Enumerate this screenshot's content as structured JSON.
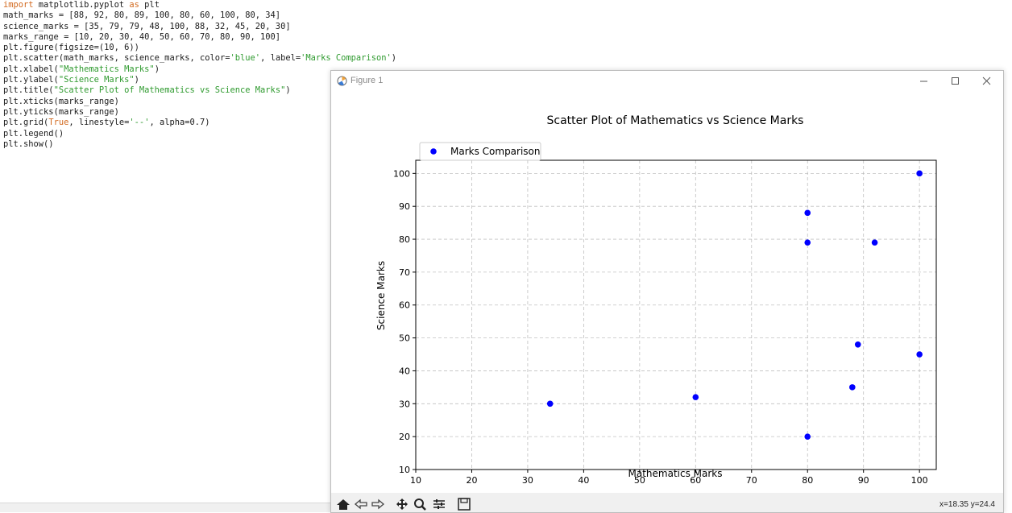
{
  "editor": {
    "lines": [
      [
        {
          "t": "import",
          "c": "kw"
        },
        {
          "t": " matplotlib.pyplot "
        },
        {
          "t": "as",
          "c": "kw"
        },
        {
          "t": " plt"
        }
      ],
      [
        {
          "t": "math_marks = [88, 92, 80, 89, 100, 80, 60, 100, 80, 34]"
        }
      ],
      [
        {
          "t": "science_marks = [35, 79, 79, 48, 100, 88, 32, 45, 20, 30]"
        }
      ],
      [
        {
          "t": "marks_range = [10, 20, 30, 40, 50, 60, 70, 80, 90, 100]"
        }
      ],
      [
        {
          "t": "plt.figure(figsize=(10, 6))"
        }
      ],
      [
        {
          "t": "plt.scatter(math_marks, science_marks, color="
        },
        {
          "t": "'blue'",
          "c": "str"
        },
        {
          "t": ", label="
        },
        {
          "t": "'Marks Comparison'",
          "c": "str"
        },
        {
          "t": ")"
        }
      ],
      [
        {
          "t": "plt.xlabel("
        },
        {
          "t": "\"Mathematics Marks\"",
          "c": "str"
        },
        {
          "t": ")"
        }
      ],
      [
        {
          "t": "plt.ylabel("
        },
        {
          "t": "\"Science Marks\"",
          "c": "str"
        },
        {
          "t": ")"
        }
      ],
      [
        {
          "t": "plt.title("
        },
        {
          "t": "\"Scatter Plot of Mathematics vs Science Marks\"",
          "c": "str"
        },
        {
          "t": ")"
        }
      ],
      [
        {
          "t": "plt.xticks(marks_range)"
        }
      ],
      [
        {
          "t": "plt.yticks(marks_range)"
        }
      ],
      [
        {
          "t": "plt.grid("
        },
        {
          "t": "True",
          "c": "kw"
        },
        {
          "t": ", linestyle="
        },
        {
          "t": "'--'",
          "c": "str"
        },
        {
          "t": ", alpha=0.7)"
        }
      ],
      [
        {
          "t": "plt.legend()"
        }
      ],
      [
        {
          "t": "plt.show()"
        }
      ]
    ]
  },
  "window": {
    "title": "Figure 1",
    "minimize_icon": "minimize-icon",
    "maximize_icon": "maximize-icon",
    "close_icon": "close-icon"
  },
  "toolbar": {
    "buttons": [
      "home-icon",
      "back-icon",
      "forward-icon",
      "pan-icon",
      "zoom-icon",
      "configure-subplots-icon",
      "save-icon"
    ],
    "coords": "x=18.35 y=24.4"
  },
  "chart_data": {
    "type": "scatter",
    "title": "Scatter Plot of Mathematics vs Science Marks",
    "xlabel": "Mathematics Marks",
    "ylabel": "Science Marks",
    "xlim": [
      10,
      103
    ],
    "ylim": [
      10,
      104
    ],
    "xticks": [
      10,
      20,
      30,
      40,
      50,
      60,
      70,
      80,
      90,
      100
    ],
    "yticks": [
      10,
      20,
      30,
      40,
      50,
      60,
      70,
      80,
      90,
      100
    ],
    "grid": true,
    "legend_position": "upper-left",
    "series": [
      {
        "name": "Marks Comparison",
        "color": "#0000ff",
        "x": [
          88,
          92,
          80,
          89,
          100,
          80,
          60,
          100,
          80,
          34
        ],
        "y": [
          35,
          79,
          79,
          48,
          100,
          88,
          32,
          45,
          20,
          30
        ]
      }
    ]
  }
}
